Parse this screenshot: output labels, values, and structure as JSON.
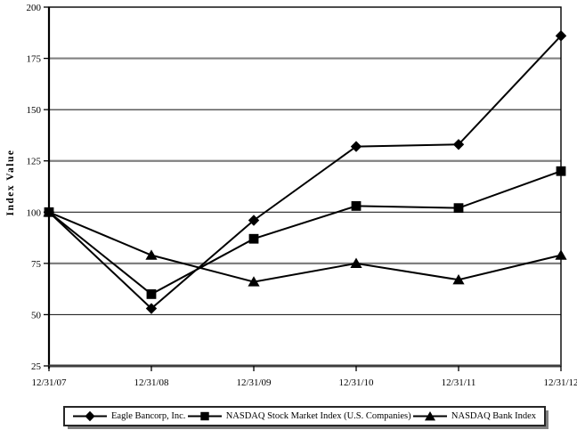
{
  "chart_data": {
    "type": "line",
    "title": "",
    "ylabel": "Index Value",
    "xlabel": "",
    "x_categories": [
      "12/31/07",
      "12/31/08",
      "12/31/09",
      "12/31/10",
      "12/31/11",
      "12/31/12"
    ],
    "y_ticks": [
      25,
      50,
      75,
      100,
      125,
      150,
      175,
      200
    ],
    "ylim": [
      25,
      200
    ],
    "grid": "horizontal-only",
    "legend_position": "bottom",
    "line_color": "#000000",
    "marker_color": "#000000",
    "gridline_major_color": "#808080",
    "gridline_minor_color": "#262626",
    "series": [
      {
        "name": "Eagle Bancorp, Inc.",
        "marker": "diamond",
        "values": [
          100,
          53,
          96,
          132,
          133,
          186
        ]
      },
      {
        "name": "NASDAQ Stock Market Index (U.S. Companies)",
        "marker": "square",
        "values": [
          100,
          60,
          87,
          103,
          102,
          120
        ]
      },
      {
        "name": "NASDAQ Bank Index",
        "marker": "triangle",
        "values": [
          100,
          79,
          66,
          75,
          67,
          79
        ]
      }
    ]
  }
}
